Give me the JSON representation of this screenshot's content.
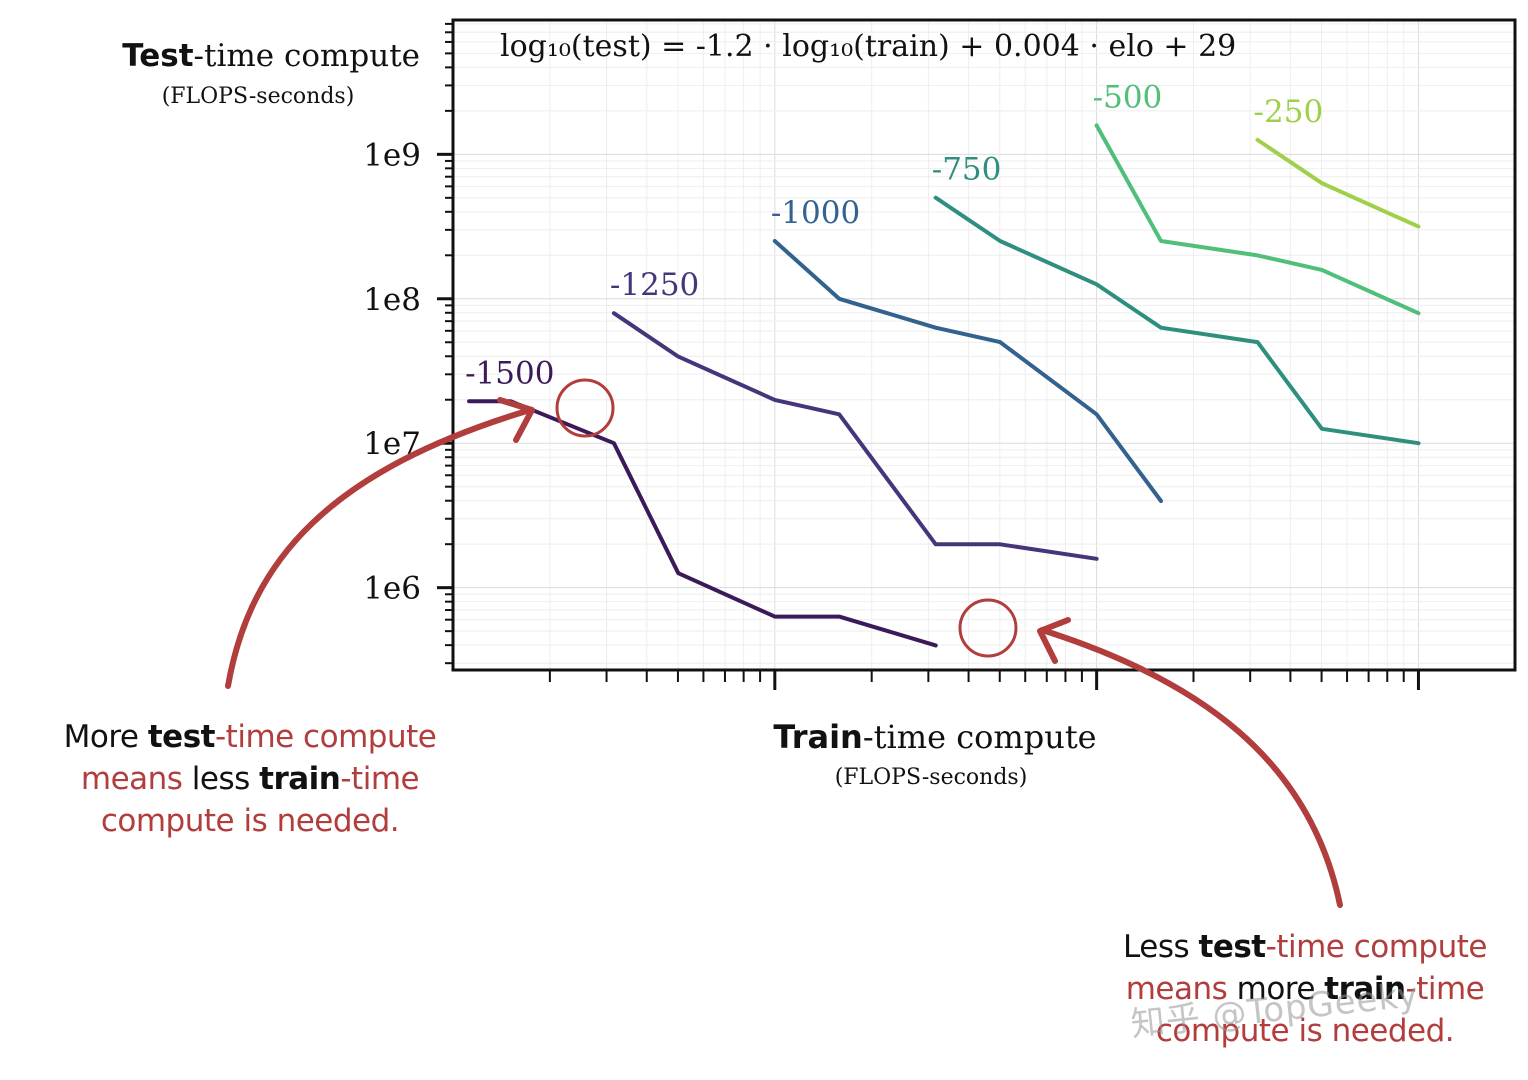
{
  "colors": {
    "annotation": "#b23d3d",
    "axis": "#111111",
    "series": [
      "#3b1a5a",
      "#47357a",
      "#33628f",
      "#2f8f7e",
      "#4fbf7a",
      "#9fd04a"
    ]
  },
  "chart_data": {
    "type": "line",
    "formula": "log₁₀(test) = -1.2 · log₁₀(train) + 0.004 · elo + 29",
    "ylabel": "Test-time compute",
    "ylabel_bold": "Test",
    "ylabel_rest": "-time compute",
    "ylabel_units": "(FLOPS-seconds)",
    "xlabel": "Train-time compute",
    "xlabel_bold": "Train",
    "xlabel_rest": "-time compute",
    "xlabel_units": "(FLOPS-seconds)",
    "y_scale": "log",
    "x_scale": "log",
    "y_ticks": [
      "1e6",
      "1e7",
      "1e8",
      "1e9"
    ],
    "grid": true,
    "series": [
      {
        "name": "-1500",
        "points": [
          [
            6.05,
            7.29
          ],
          [
            6.18,
            7.29
          ],
          [
            6.5,
            7.0
          ],
          [
            6.7,
            6.1
          ],
          [
            7.0,
            5.8
          ],
          [
            7.2,
            5.8
          ],
          [
            7.5,
            5.6
          ]
        ]
      },
      {
        "name": "-1250",
        "points": [
          [
            6.5,
            7.9
          ],
          [
            6.7,
            7.6
          ],
          [
            7.0,
            7.3
          ],
          [
            7.2,
            7.2
          ],
          [
            7.5,
            6.3
          ],
          [
            7.7,
            6.3
          ],
          [
            8.0,
            6.2
          ]
        ]
      },
      {
        "name": "-1000",
        "points": [
          [
            7.0,
            8.4
          ],
          [
            7.2,
            8.0
          ],
          [
            7.5,
            7.8
          ],
          [
            7.7,
            7.7
          ],
          [
            8.0,
            7.2
          ],
          [
            8.2,
            6.6
          ]
        ]
      },
      {
        "name": "-750",
        "points": [
          [
            7.5,
            8.7
          ],
          [
            7.7,
            8.4
          ],
          [
            8.0,
            8.1
          ],
          [
            8.2,
            7.8
          ],
          [
            8.5,
            7.7
          ],
          [
            8.7,
            7.1
          ],
          [
            9.0,
            7.0
          ]
        ]
      },
      {
        "name": "-500",
        "points": [
          [
            8.0,
            9.2
          ],
          [
            8.2,
            8.4
          ],
          [
            8.5,
            8.3
          ],
          [
            8.7,
            8.2
          ],
          [
            9.0,
            7.9
          ]
        ]
      },
      {
        "name": "-250",
        "points": [
          [
            8.5,
            9.1
          ],
          [
            8.7,
            8.8
          ],
          [
            9.0,
            8.5
          ]
        ]
      }
    ]
  },
  "annotations": {
    "left": {
      "p1": "More ",
      "p2": "test",
      "p3": "-time compute",
      "p4": "means ",
      "p5": "less ",
      "p6": "train",
      "p7": "-time",
      "p8": "compute is needed."
    },
    "right": {
      "p1": "Less ",
      "p2": "test",
      "p3": "-time compute",
      "p4": "means ",
      "p5": "more ",
      "p6": "train",
      "p7": "-time",
      "p8": "compute is needed."
    }
  },
  "watermark": "知乎 @TopGeeky"
}
